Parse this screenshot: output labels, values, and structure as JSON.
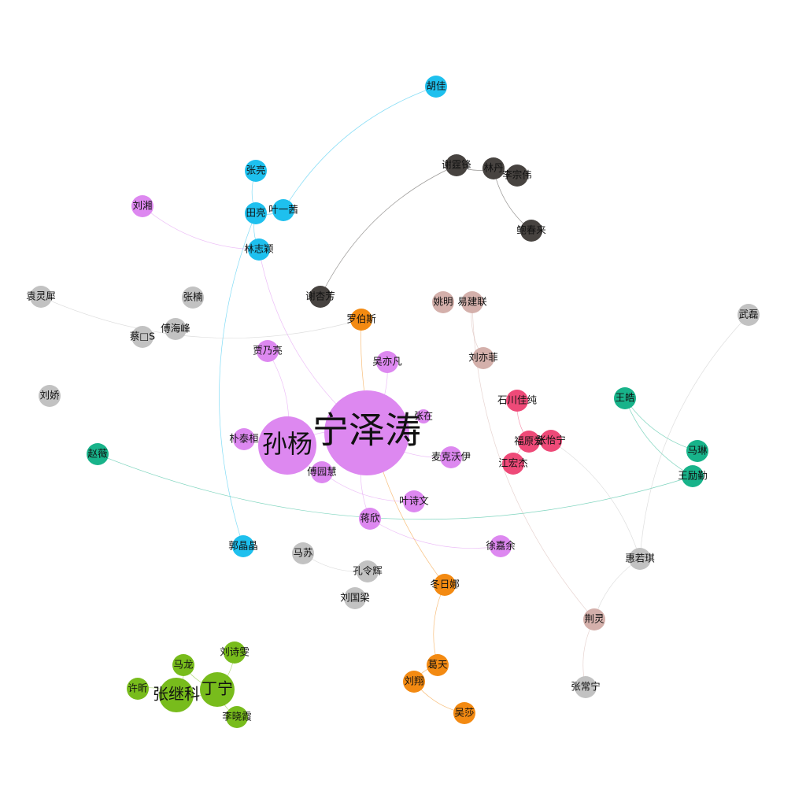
{
  "graph": {
    "type": "network",
    "colors": {
      "purple": "#dd88f0",
      "cyan": "#1ec0ee",
      "dark": "#474340",
      "gray": "#c2c2c2",
      "pinkish": "#d4b0ab",
      "orange": "#f38a12",
      "red": "#ee4a78",
      "teal": "#18b38a",
      "green": "#78bc1c"
    },
    "nodes": [
      {
        "id": "n-ningzetao",
        "label": "宁泽涛",
        "group": "purple",
        "size": "xl"
      },
      {
        "id": "n-sunyang",
        "label": "孙杨",
        "group": "purple",
        "size": "l"
      },
      {
        "id": "n-piaotaihuan",
        "label": "朴泰桓",
        "group": "purple",
        "size": "s"
      },
      {
        "id": "n-jiananliang",
        "label": "贾乃亮",
        "group": "purple",
        "size": "s"
      },
      {
        "id": "n-wuyifan",
        "label": "吴亦凡",
        "group": "purple",
        "size": "s"
      },
      {
        "id": "n-fuyuanhui",
        "label": "傅园慧",
        "group": "purple",
        "size": "s"
      },
      {
        "id": "n-maikewoyi",
        "label": "麦克沃伊",
        "group": "purple",
        "size": "s"
      },
      {
        "id": "n-yeshiwen",
        "label": "叶诗文",
        "group": "purple",
        "size": "s"
      },
      {
        "id": "n-jiangxin",
        "label": "蒋欣",
        "group": "purple",
        "size": "s"
      },
      {
        "id": "n-xujiayu",
        "label": "徐嘉余",
        "group": "purple",
        "size": "s"
      },
      {
        "id": "n-liuxiang",
        "label": "刘湘",
        "group": "purple",
        "size": "s"
      },
      {
        "id": "n-zhangzai",
        "label": "张在",
        "group": "purple",
        "size": "xs"
      },
      {
        "id": "n-hujia",
        "label": "胡佳",
        "group": "cyan",
        "size": "s"
      },
      {
        "id": "n-zhangliang",
        "label": "张亮",
        "group": "cyan",
        "size": "s"
      },
      {
        "id": "n-tianliang",
        "label": "田亮",
        "group": "cyan",
        "size": "s"
      },
      {
        "id": "n-yeyiqian",
        "label": "叶一茜",
        "group": "cyan",
        "size": "s"
      },
      {
        "id": "n-linzhiying",
        "label": "林志颖",
        "group": "cyan",
        "size": "s"
      },
      {
        "id": "n-guojingjing",
        "label": "郭晶晶",
        "group": "cyan",
        "size": "s"
      },
      {
        "id": "n-xietingfeng",
        "label": "谢霆锋",
        "group": "dark",
        "size": "s"
      },
      {
        "id": "n-lindan",
        "label": "林丹",
        "group": "dark",
        "size": "s"
      },
      {
        "id": "n-lizongwei",
        "label": "李宗伟",
        "group": "dark",
        "size": "s"
      },
      {
        "id": "n-baochunlai",
        "label": "鲍春来",
        "group": "dark",
        "size": "s"
      },
      {
        "id": "n-xiexingfang",
        "label": "谢杏芳",
        "group": "dark",
        "size": "s"
      },
      {
        "id": "n-yuanlingxi",
        "label": "袁灵犀",
        "group": "gray",
        "size": "s"
      },
      {
        "id": "n-zhangnan",
        "label": "张楠",
        "group": "gray",
        "size": "s"
      },
      {
        "id": "n-caixx",
        "label": "蔡□S",
        "group": "gray",
        "size": "s"
      },
      {
        "id": "n-fuhaifeng",
        "label": "傅海峰",
        "group": "gray",
        "size": "s"
      },
      {
        "id": "n-liujiao",
        "label": "刘娇",
        "group": "gray",
        "size": "s"
      },
      {
        "id": "n-wulei",
        "label": "武磊",
        "group": "gray",
        "size": "s"
      },
      {
        "id": "n-masu",
        "label": "马苏",
        "group": "gray",
        "size": "s"
      },
      {
        "id": "n-konglinghui",
        "label": "孔令辉",
        "group": "gray",
        "size": "s"
      },
      {
        "id": "n-liuguoliang",
        "label": "刘国梁",
        "group": "gray",
        "size": "s"
      },
      {
        "id": "n-huiruoqi",
        "label": "惠若琪",
        "group": "gray",
        "size": "s"
      },
      {
        "id": "n-zhangchangning",
        "label": "张常宁",
        "group": "gray",
        "size": "s"
      },
      {
        "id": "n-yaoming",
        "label": "姚明",
        "group": "pinkish",
        "size": "s"
      },
      {
        "id": "n-yijianlian",
        "label": "易建联",
        "group": "pinkish",
        "size": "s"
      },
      {
        "id": "n-liuyifei",
        "label": "刘亦菲",
        "group": "pinkish",
        "size": "s"
      },
      {
        "id": "n-jingling",
        "label": "荆灵",
        "group": "pinkish",
        "size": "s"
      },
      {
        "id": "n-luobosi",
        "label": "罗伯斯",
        "group": "orange",
        "size": "s"
      },
      {
        "id": "n-dongrina",
        "label": "冬日娜",
        "group": "orange",
        "size": "s"
      },
      {
        "id": "n-getian",
        "label": "葛天",
        "group": "orange",
        "size": "s"
      },
      {
        "id": "n-liuxiang2",
        "label": "刘翔",
        "group": "orange",
        "size": "s"
      },
      {
        "id": "n-wusha",
        "label": "吴莎",
        "group": "orange",
        "size": "s"
      },
      {
        "id": "n-shichuan",
        "label": "石川佳纯",
        "group": "red",
        "size": "s"
      },
      {
        "id": "n-fuyuanai",
        "label": "福原爱",
        "group": "red",
        "size": "s"
      },
      {
        "id": "n-zhangyining",
        "label": "张怡宁",
        "group": "red",
        "size": "s"
      },
      {
        "id": "n-jianghongjie",
        "label": "江宏杰",
        "group": "red",
        "size": "s"
      },
      {
        "id": "n-wanghao",
        "label": "王皓",
        "group": "teal",
        "size": "s"
      },
      {
        "id": "n-malin",
        "label": "马琳",
        "group": "teal",
        "size": "s"
      },
      {
        "id": "n-wangliqin",
        "label": "王励勤",
        "group": "teal",
        "size": "s"
      },
      {
        "id": "n-zhaowei",
        "label": "赵薇",
        "group": "teal",
        "size": "s"
      },
      {
        "id": "n-zhangjike",
        "label": "张继科",
        "group": "green",
        "size": "m"
      },
      {
        "id": "n-dingning",
        "label": "丁宁",
        "group": "green",
        "size": "m"
      },
      {
        "id": "n-malong",
        "label": "马龙",
        "group": "green",
        "size": "s"
      },
      {
        "id": "n-liushiwen",
        "label": "刘诗雯",
        "group": "green",
        "size": "s"
      },
      {
        "id": "n-xuxin",
        "label": "许昕",
        "group": "green",
        "size": "s"
      },
      {
        "id": "n-lixiaoxia",
        "label": "李晓霞",
        "group": "green",
        "size": "s"
      }
    ],
    "edges": [
      {
        "source": "n-hujia",
        "target": "n-yeyiqian",
        "group": "cyan"
      },
      {
        "source": "n-zhangliang",
        "target": "n-tianliang",
        "group": "cyan"
      },
      {
        "source": "n-tianliang",
        "target": "n-yeyiqian",
        "group": "cyan"
      },
      {
        "source": "n-tianliang",
        "target": "n-linzhiying",
        "group": "cyan"
      },
      {
        "source": "n-tianliang",
        "target": "n-guojingjing",
        "group": "cyan"
      },
      {
        "source": "n-xietingfeng",
        "target": "n-xiexingfang",
        "group": "dark"
      },
      {
        "source": "n-xietingfeng",
        "target": "n-lindan",
        "group": "dark"
      },
      {
        "source": "n-lindan",
        "target": "n-lizongwei",
        "group": "dark"
      },
      {
        "source": "n-lindan",
        "target": "n-baochunlai",
        "group": "dark"
      },
      {
        "source": "n-liuxiang",
        "target": "n-linzhiying",
        "group": "purple"
      },
      {
        "source": "n-yuanlingxi",
        "target": "n-luobosi",
        "group": "gray"
      },
      {
        "source": "n-linzhiying",
        "target": "n-ningzetao",
        "group": "purple"
      },
      {
        "source": "n-zhaowei",
        "target": "n-wangliqin",
        "group": "teal"
      },
      {
        "source": "n-wanghao",
        "target": "n-malin",
        "group": "teal"
      },
      {
        "source": "n-wanghao",
        "target": "n-wangliqin",
        "group": "teal"
      },
      {
        "source": "n-wulei",
        "target": "n-huiruoqi",
        "group": "gray"
      },
      {
        "source": "n-huiruoqi",
        "target": "n-jingling",
        "group": "gray"
      },
      {
        "source": "n-huiruoqi",
        "target": "n-zhangyining",
        "group": "gray"
      },
      {
        "source": "n-jingling",
        "target": "n-zhangchangning",
        "group": "pinkish"
      },
      {
        "source": "n-yijianlian",
        "target": "n-jingling",
        "group": "pinkish"
      },
      {
        "source": "n-yijianlian",
        "target": "n-liuyifei",
        "group": "pinkish"
      },
      {
        "source": "n-luobosi",
        "target": "n-dongrina",
        "group": "orange"
      },
      {
        "source": "n-dongrina",
        "target": "n-getian",
        "group": "orange"
      },
      {
        "source": "n-getian",
        "target": "n-liuxiang2",
        "group": "orange"
      },
      {
        "source": "n-liuxiang2",
        "target": "n-wusha",
        "group": "orange"
      },
      {
        "source": "n-ningzetao",
        "target": "n-sunyang",
        "group": "purple"
      },
      {
        "source": "n-ningzetao",
        "target": "n-wuyifan",
        "group": "purple"
      },
      {
        "source": "n-ningzetao",
        "target": "n-jiangxin",
        "group": "purple"
      },
      {
        "source": "n-ningzetao",
        "target": "n-maikewoyi",
        "group": "purple"
      },
      {
        "source": "n-ningzetao",
        "target": "n-zhangzai",
        "group": "purple"
      },
      {
        "source": "n-sunyang",
        "target": "n-fuyuanhui",
        "group": "purple"
      },
      {
        "source": "n-sunyang",
        "target": "n-piaotaihuan",
        "group": "purple"
      },
      {
        "source": "n-sunyang",
        "target": "n-jiananliang",
        "group": "purple"
      },
      {
        "source": "n-fuyuanhui",
        "target": "n-yeshiwen",
        "group": "purple"
      },
      {
        "source": "n-jiangxin",
        "target": "n-xujiayu",
        "group": "purple"
      },
      {
        "source": "n-masu",
        "target": "n-konglinghui",
        "group": "gray"
      },
      {
        "source": "n-shichuan",
        "target": "n-fuyuanai",
        "group": "red"
      },
      {
        "source": "n-fuyuanai",
        "target": "n-jianghongjie",
        "group": "red"
      },
      {
        "source": "n-fuyuanai",
        "target": "n-zhangyining",
        "group": "red"
      },
      {
        "source": "n-zhangjike",
        "target": "n-dingning",
        "group": "green"
      },
      {
        "source": "n-zhangjike",
        "target": "n-malong",
        "group": "green"
      },
      {
        "source": "n-zhangjike",
        "target": "n-xuxin",
        "group": "green"
      },
      {
        "source": "n-dingning",
        "target": "n-liushiwen",
        "group": "green"
      },
      {
        "source": "n-dingning",
        "target": "n-lixiaoxia",
        "group": "green"
      },
      {
        "source": "n-malong",
        "target": "n-dingning",
        "group": "green"
      }
    ]
  }
}
